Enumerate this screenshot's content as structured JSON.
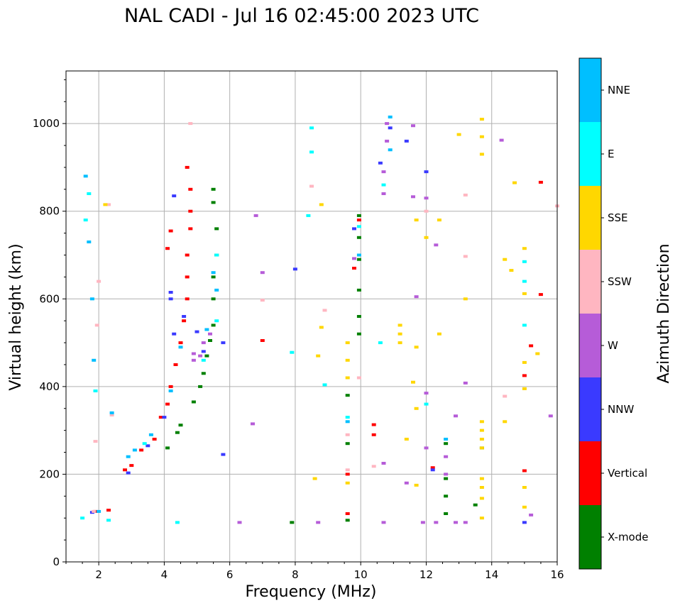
{
  "chart_data": {
    "type": "scatter",
    "title": "NAL CADI - Jul 16 02:45:00 2023 UTC",
    "xlabel": "Frequency (MHz)",
    "ylabel": "Virtual height (km)",
    "xlim": [
      1,
      16
    ],
    "ylim": [
      0,
      1120
    ],
    "xticks": [
      2,
      4,
      6,
      8,
      10,
      12,
      14,
      16
    ],
    "yticks": [
      0,
      200,
      400,
      600,
      800,
      1000
    ],
    "grid": true,
    "colorbar": {
      "label": "Azimuth Direction",
      "categories": [
        "X-mode",
        "Vertical",
        "NNW",
        "W",
        "SSW",
        "SSE",
        "E",
        "NNE"
      ],
      "colors": [
        "#008000",
        "#ff0000",
        "#3a3aff",
        "#b65cd8",
        "#ffb6c1",
        "#ffd700",
        "#00ffff",
        "#00bfff"
      ]
    },
    "series": [
      {
        "name": "X-mode",
        "color": "#008000",
        "points": [
          [
            4.1,
            260
          ],
          [
            4.4,
            295
          ],
          [
            4.5,
            312
          ],
          [
            4.9,
            365
          ],
          [
            5.1,
            400
          ],
          [
            5.2,
            430
          ],
          [
            5.3,
            470
          ],
          [
            5.4,
            505
          ],
          [
            5.5,
            540
          ],
          [
            5.5,
            600
          ],
          [
            5.5,
            650
          ],
          [
            5.6,
            700
          ],
          [
            5.6,
            760
          ],
          [
            5.5,
            820
          ],
          [
            5.5,
            850
          ],
          [
            9.6,
            380
          ],
          [
            9.6,
            270
          ],
          [
            9.6,
            95
          ],
          [
            9.95,
            520
          ],
          [
            9.95,
            560
          ],
          [
            9.95,
            620
          ],
          [
            9.95,
            690
          ],
          [
            9.95,
            740
          ],
          [
            9.95,
            790
          ],
          [
            12.6,
            110
          ],
          [
            12.6,
            150
          ],
          [
            12.6,
            190
          ],
          [
            12.6,
            270
          ],
          [
            13.5,
            130
          ],
          [
            13.7,
            260
          ],
          [
            7.9,
            90
          ]
        ]
      },
      {
        "name": "Vertical",
        "color": "#ff0000",
        "points": [
          [
            1.9,
            115
          ],
          [
            2.3,
            118
          ],
          [
            2.8,
            210
          ],
          [
            3.0,
            220
          ],
          [
            3.3,
            255
          ],
          [
            3.7,
            280
          ],
          [
            3.9,
            330
          ],
          [
            4.1,
            360
          ],
          [
            4.2,
            400
          ],
          [
            4.35,
            450
          ],
          [
            4.5,
            500
          ],
          [
            4.6,
            550
          ],
          [
            4.7,
            600
          ],
          [
            4.7,
            650
          ],
          [
            4.7,
            700
          ],
          [
            4.8,
            760
          ],
          [
            4.8,
            800
          ],
          [
            4.8,
            850
          ],
          [
            4.7,
            900
          ],
          [
            4.1,
            715
          ],
          [
            4.2,
            755
          ],
          [
            7.0,
            505
          ],
          [
            9.6,
            110
          ],
          [
            9.6,
            200
          ],
          [
            9.8,
            670
          ],
          [
            9.95,
            780
          ],
          [
            10.4,
            290
          ],
          [
            10.4,
            313
          ],
          [
            12.2,
            215
          ],
          [
            15.0,
            425
          ],
          [
            15.0,
            208
          ],
          [
            15.2,
            493
          ],
          [
            15.5,
            610
          ],
          [
            15.5,
            866
          ]
        ]
      },
      {
        "name": "NNW",
        "color": "#3a3aff",
        "points": [
          [
            1.8,
            113
          ],
          [
            2.9,
            203
          ],
          [
            3.5,
            265
          ],
          [
            4.0,
            330
          ],
          [
            4.2,
            600
          ],
          [
            4.2,
            615
          ],
          [
            4.3,
            520
          ],
          [
            4.6,
            560
          ],
          [
            5.0,
            525
          ],
          [
            5.2,
            480
          ],
          [
            5.8,
            500
          ],
          [
            8.0,
            668
          ],
          [
            9.8,
            760
          ],
          [
            10.6,
            910
          ],
          [
            10.9,
            990
          ],
          [
            11.4,
            960
          ],
          [
            12.0,
            890
          ],
          [
            12.2,
            210
          ],
          [
            15.0,
            90
          ],
          [
            5.8,
            245
          ],
          [
            4.3,
            835
          ]
        ]
      },
      {
        "name": "W",
        "color": "#b65cd8",
        "points": [
          [
            4.9,
            460
          ],
          [
            4.9,
            475
          ],
          [
            5.1,
            470
          ],
          [
            5.2,
            500
          ],
          [
            5.4,
            520
          ],
          [
            6.3,
            90
          ],
          [
            6.7,
            315
          ],
          [
            6.8,
            790
          ],
          [
            7.0,
            660
          ],
          [
            8.7,
            90
          ],
          [
            9.8,
            692
          ],
          [
            10.7,
            225
          ],
          [
            10.7,
            90
          ],
          [
            10.7,
            840
          ],
          [
            10.7,
            890
          ],
          [
            11.4,
            180
          ],
          [
            11.6,
            995
          ],
          [
            11.6,
            833
          ],
          [
            11.7,
            605
          ],
          [
            11.9,
            90
          ],
          [
            12.0,
            260
          ],
          [
            12.0,
            385
          ],
          [
            12.0,
            830
          ],
          [
            12.3,
            90
          ],
          [
            12.3,
            723
          ],
          [
            12.6,
            200
          ],
          [
            12.6,
            240
          ],
          [
            12.9,
            333
          ],
          [
            12.9,
            90
          ],
          [
            13.2,
            408
          ],
          [
            13.2,
            90
          ],
          [
            14.3,
            962
          ],
          [
            15.2,
            107
          ],
          [
            15.8,
            333
          ],
          [
            10.8,
            1000
          ],
          [
            10.8,
            960
          ]
        ]
      },
      {
        "name": "SSW",
        "color": "#ffb6c1",
        "points": [
          [
            1.85,
            115
          ],
          [
            1.9,
            275
          ],
          [
            1.95,
            540
          ],
          [
            2.0,
            640
          ],
          [
            2.3,
            815
          ],
          [
            2.4,
            335
          ],
          [
            4.8,
            1000
          ],
          [
            7.0,
            597
          ],
          [
            8.5,
            857
          ],
          [
            8.9,
            574
          ],
          [
            9.6,
            290
          ],
          [
            9.6,
            210
          ],
          [
            9.95,
            420
          ],
          [
            10.4,
            218
          ],
          [
            12.0,
            800
          ],
          [
            13.2,
            697
          ],
          [
            13.2,
            837
          ],
          [
            14.4,
            378
          ],
          [
            16.0,
            812
          ]
        ]
      },
      {
        "name": "SSE",
        "color": "#ffd700",
        "points": [
          [
            2.2,
            815
          ],
          [
            8.6,
            190
          ],
          [
            8.7,
            470
          ],
          [
            8.8,
            535
          ],
          [
            8.8,
            815
          ],
          [
            9.6,
            420
          ],
          [
            9.6,
            460
          ],
          [
            9.6,
            500
          ],
          [
            9.6,
            180
          ],
          [
            11.2,
            540
          ],
          [
            11.2,
            520
          ],
          [
            11.2,
            500
          ],
          [
            11.4,
            280
          ],
          [
            11.6,
            410
          ],
          [
            11.7,
            490
          ],
          [
            11.7,
            780
          ],
          [
            11.7,
            350
          ],
          [
            11.7,
            175
          ],
          [
            12.0,
            740
          ],
          [
            12.4,
            780
          ],
          [
            12.4,
            520
          ],
          [
            13.0,
            975
          ],
          [
            13.2,
            600
          ],
          [
            13.7,
            100
          ],
          [
            13.7,
            145
          ],
          [
            13.7,
            170
          ],
          [
            13.7,
            190
          ],
          [
            13.7,
            260
          ],
          [
            13.7,
            280
          ],
          [
            13.7,
            300
          ],
          [
            13.7,
            320
          ],
          [
            13.7,
            930
          ],
          [
            13.7,
            970
          ],
          [
            13.7,
            1010
          ],
          [
            14.4,
            320
          ],
          [
            14.4,
            690
          ],
          [
            14.6,
            665
          ],
          [
            14.7,
            865
          ],
          [
            15.0,
            125
          ],
          [
            15.0,
            170
          ],
          [
            15.0,
            395
          ],
          [
            15.0,
            455
          ],
          [
            15.0,
            612
          ],
          [
            15.0,
            715
          ],
          [
            15.4,
            475
          ]
        ]
      },
      {
        "name": "E",
        "color": "#00ffff",
        "points": [
          [
            1.5,
            100
          ],
          [
            1.6,
            780
          ],
          [
            1.7,
            840
          ],
          [
            1.9,
            390
          ],
          [
            2.3,
            95
          ],
          [
            3.4,
            270
          ],
          [
            4.4,
            90
          ],
          [
            5.2,
            460
          ],
          [
            5.6,
            550
          ],
          [
            5.6,
            700
          ],
          [
            7.9,
            478
          ],
          [
            8.4,
            790
          ],
          [
            8.5,
            990
          ],
          [
            8.5,
            935
          ],
          [
            8.9,
            404
          ],
          [
            9.6,
            330
          ],
          [
            9.95,
            765
          ],
          [
            10.6,
            500
          ],
          [
            10.7,
            860
          ],
          [
            12.0,
            360
          ],
          [
            15.0,
            540
          ],
          [
            15.0,
            640
          ],
          [
            15.0,
            685
          ]
        ]
      },
      {
        "name": "NNE",
        "color": "#00bfff",
        "points": [
          [
            1.6,
            880
          ],
          [
            1.7,
            730
          ],
          [
            1.8,
            600
          ],
          [
            1.85,
            460
          ],
          [
            2.0,
            115
          ],
          [
            2.4,
            340
          ],
          [
            2.9,
            240
          ],
          [
            3.1,
            255
          ],
          [
            3.6,
            290
          ],
          [
            4.2,
            390
          ],
          [
            4.5,
            490
          ],
          [
            5.3,
            530
          ],
          [
            5.5,
            660
          ],
          [
            5.6,
            620
          ],
          [
            9.6,
            320
          ],
          [
            9.95,
            700
          ],
          [
            10.9,
            940
          ],
          [
            10.9,
            1015
          ],
          [
            12.6,
            280
          ]
        ]
      }
    ]
  }
}
